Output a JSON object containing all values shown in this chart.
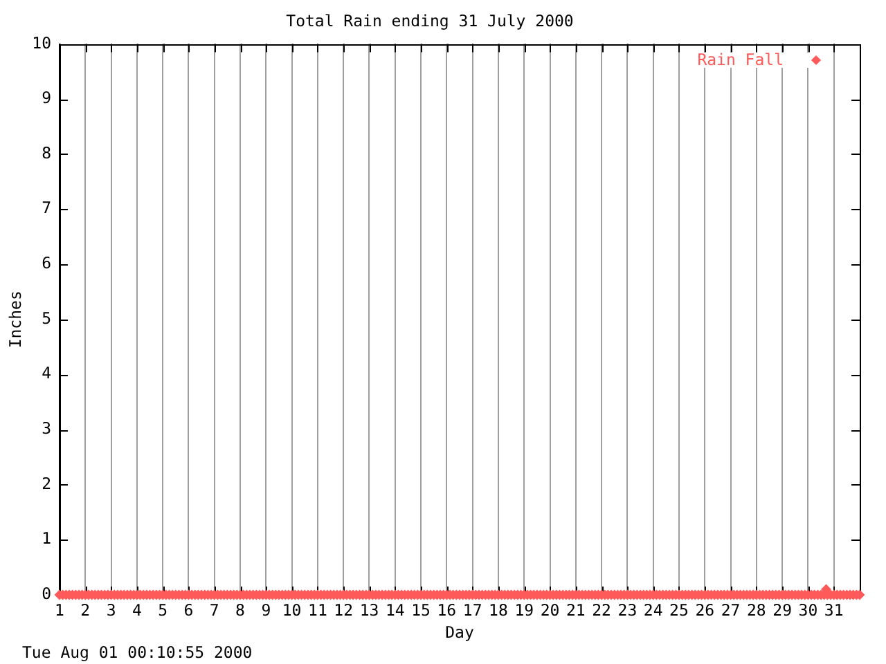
{
  "chart_data": {
    "type": "scatter",
    "title": "Total Rain ending 31 July 2000",
    "xlabel": "Day",
    "ylabel": "Inches",
    "annotations": [
      "Tue Aug 01 00:10:55 2000"
    ],
    "xlim": [
      1,
      32
    ],
    "xticks": [
      1,
      2,
      3,
      4,
      5,
      6,
      7,
      8,
      9,
      10,
      11,
      12,
      13,
      14,
      15,
      16,
      17,
      18,
      19,
      20,
      21,
      22,
      23,
      24,
      25,
      26,
      27,
      28,
      29,
      30,
      31
    ],
    "ylim": [
      0,
      10
    ],
    "yticks": [
      0,
      1,
      2,
      3,
      4,
      5,
      6,
      7,
      8,
      9,
      10
    ],
    "grid": "x",
    "legend": "top right",
    "marker": "diamond",
    "series": [
      {
        "name": "Rain Fall",
        "color": "#ff5a5a",
        "x": [
          1,
          1.125,
          1.25,
          1.375,
          1.5,
          1.625,
          1.75,
          1.875,
          2,
          2.125,
          2.25,
          2.375,
          2.5,
          2.625,
          2.75,
          2.875,
          3,
          3.125,
          3.25,
          3.375,
          3.5,
          3.625,
          3.75,
          3.875,
          4,
          4.125,
          4.25,
          4.375,
          4.5,
          4.625,
          4.75,
          4.875,
          5,
          5.125,
          5.25,
          5.375,
          5.5,
          5.625,
          5.75,
          5.875,
          6,
          6.125,
          6.25,
          6.375,
          6.5,
          6.625,
          6.75,
          6.875,
          7,
          7.125,
          7.25,
          7.375,
          7.5,
          7.625,
          7.75,
          7.875,
          8,
          8.125,
          8.25,
          8.375,
          8.5,
          8.625,
          8.75,
          8.875,
          9,
          9.125,
          9.25,
          9.375,
          9.5,
          9.625,
          9.75,
          9.875,
          10,
          10.125,
          10.25,
          10.375,
          10.5,
          10.625,
          10.75,
          10.875,
          11,
          11.125,
          11.25,
          11.375,
          11.5,
          11.625,
          11.75,
          11.875,
          12,
          12.125,
          12.25,
          12.375,
          12.5,
          12.625,
          12.75,
          12.875,
          13,
          13.125,
          13.25,
          13.375,
          13.5,
          13.625,
          13.75,
          13.875,
          14,
          14.125,
          14.25,
          14.375,
          14.5,
          14.625,
          14.75,
          14.875,
          15,
          15.125,
          15.25,
          15.375,
          15.5,
          15.625,
          15.75,
          15.875,
          16,
          16.125,
          16.25,
          16.375,
          16.5,
          16.625,
          16.75,
          16.875,
          17,
          17.125,
          17.25,
          17.375,
          17.5,
          17.625,
          17.75,
          17.875,
          18,
          18.125,
          18.25,
          18.375,
          18.5,
          18.625,
          18.75,
          18.875,
          19,
          19.125,
          19.25,
          19.375,
          19.5,
          19.625,
          19.75,
          19.875,
          20,
          20.125,
          20.25,
          20.375,
          20.5,
          20.625,
          20.75,
          20.875,
          21,
          21.125,
          21.25,
          21.375,
          21.5,
          21.625,
          21.75,
          21.875,
          22,
          22.125,
          22.25,
          22.375,
          22.5,
          22.625,
          22.75,
          22.875,
          23,
          23.125,
          23.25,
          23.375,
          23.5,
          23.625,
          23.75,
          23.875,
          24,
          24.125,
          24.25,
          24.375,
          24.5,
          24.625,
          24.75,
          24.875,
          25,
          25.125,
          25.25,
          25.375,
          25.5,
          25.625,
          25.75,
          25.875,
          26,
          26.125,
          26.25,
          26.375,
          26.5,
          26.625,
          26.75,
          26.875,
          27,
          27.125,
          27.25,
          27.375,
          27.5,
          27.625,
          27.75,
          27.875,
          28,
          28.125,
          28.25,
          28.375,
          28.5,
          28.625,
          28.75,
          28.875,
          29,
          29.125,
          29.25,
          29.375,
          29.5,
          29.625,
          29.75,
          29.875,
          30,
          30.125,
          30.25,
          30.375,
          30.5,
          30.625,
          30.7,
          30.75,
          30.875,
          31,
          31.125,
          31.25,
          31.375,
          31.5,
          31.625,
          31.75,
          31.875,
          32
        ],
        "values": [
          0,
          0,
          0,
          0,
          0,
          0,
          0,
          0,
          0,
          0,
          0,
          0,
          0,
          0,
          0,
          0,
          0,
          0,
          0,
          0,
          0,
          0,
          0,
          0,
          0,
          0,
          0,
          0,
          0,
          0,
          0,
          0,
          0,
          0,
          0,
          0,
          0,
          0,
          0,
          0,
          0,
          0,
          0,
          0,
          0,
          0,
          0,
          0,
          0,
          0,
          0,
          0,
          0,
          0,
          0,
          0,
          0,
          0,
          0,
          0,
          0,
          0,
          0,
          0,
          0,
          0,
          0,
          0,
          0,
          0,
          0,
          0,
          0,
          0,
          0,
          0,
          0,
          0,
          0,
          0,
          0,
          0,
          0,
          0,
          0,
          0,
          0,
          0,
          0,
          0,
          0,
          0,
          0,
          0,
          0,
          0,
          0,
          0,
          0,
          0,
          0,
          0,
          0,
          0,
          0,
          0,
          0,
          0,
          0,
          0,
          0,
          0,
          0,
          0,
          0,
          0,
          0,
          0,
          0,
          0,
          0,
          0,
          0,
          0,
          0,
          0,
          0,
          0,
          0,
          0,
          0,
          0,
          0,
          0,
          0,
          0,
          0,
          0,
          0,
          0,
          0,
          0,
          0,
          0,
          0,
          0,
          0,
          0,
          0,
          0,
          0,
          0,
          0,
          0,
          0,
          0,
          0,
          0,
          0,
          0,
          0,
          0,
          0,
          0,
          0,
          0,
          0,
          0,
          0,
          0,
          0,
          0,
          0,
          0,
          0,
          0,
          0,
          0,
          0,
          0,
          0,
          0,
          0,
          0,
          0,
          0,
          0,
          0,
          0,
          0,
          0,
          0,
          0,
          0,
          0,
          0,
          0,
          0,
          0,
          0,
          0,
          0,
          0,
          0,
          0,
          0,
          0,
          0,
          0,
          0,
          0,
          0,
          0,
          0,
          0,
          0,
          0,
          0,
          0,
          0,
          0,
          0,
          0,
          0,
          0,
          0,
          0,
          0,
          0,
          0,
          0,
          0,
          0,
          0,
          0,
          0,
          0,
          0,
          0.1,
          0,
          0,
          0,
          0,
          0,
          0,
          0,
          0,
          0,
          0,
          0
        ]
      }
    ]
  }
}
